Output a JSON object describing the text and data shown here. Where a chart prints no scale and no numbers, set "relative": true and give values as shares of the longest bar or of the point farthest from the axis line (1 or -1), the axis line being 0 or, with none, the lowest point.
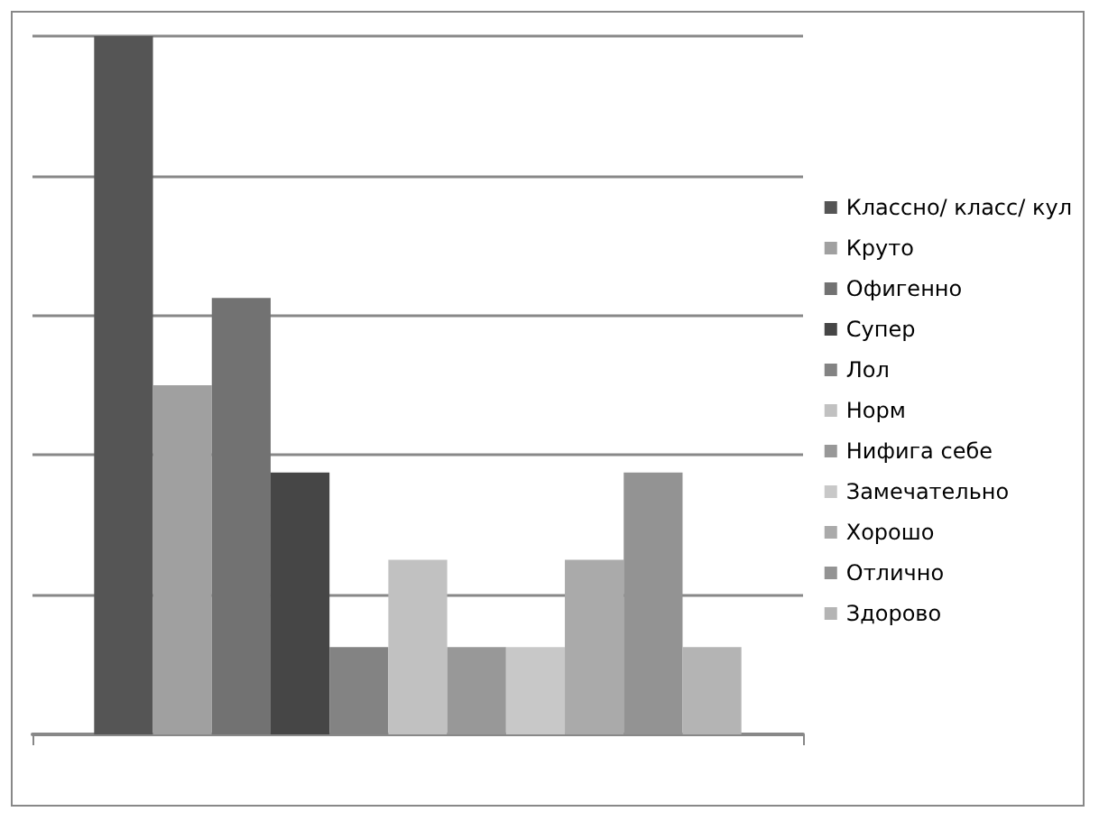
{
  "chart_data": {
    "type": "bar",
    "relative": true,
    "categories": [
      null
    ],
    "grid": "y",
    "legend": "right",
    "series": [
      {
        "name": "Классно/ класс/ кул",
        "color": "#555555",
        "values": [
          1
        ]
      },
      {
        "name": "Круто",
        "color": "#a0a0a0",
        "values": [
          0.5
        ]
      },
      {
        "name": "Офигенно",
        "color": "#727272",
        "values": [
          0.625
        ]
      },
      {
        "name": "Супер",
        "color": "#464646",
        "values": [
          0.375
        ]
      },
      {
        "name": "Лол",
        "color": "#838383",
        "values": [
          0.125
        ]
      },
      {
        "name": "Норм",
        "color": "#c1c1c1",
        "values": [
          0.25
        ]
      },
      {
        "name": "Нифига себе",
        "color": "#989898",
        "values": [
          0.125
        ]
      },
      {
        "name": "Замечательно",
        "color": "#c8c8c8",
        "values": [
          0.125
        ]
      },
      {
        "name": "Хорошо",
        "color": "#aaaaaa",
        "values": [
          0.25
        ]
      },
      {
        "name": "Отлично",
        "color": "#939393",
        "values": [
          0.375
        ]
      },
      {
        "name": "Здорово",
        "color": "#b4b4b4",
        "values": [
          0.125
        ]
      }
    ]
  }
}
